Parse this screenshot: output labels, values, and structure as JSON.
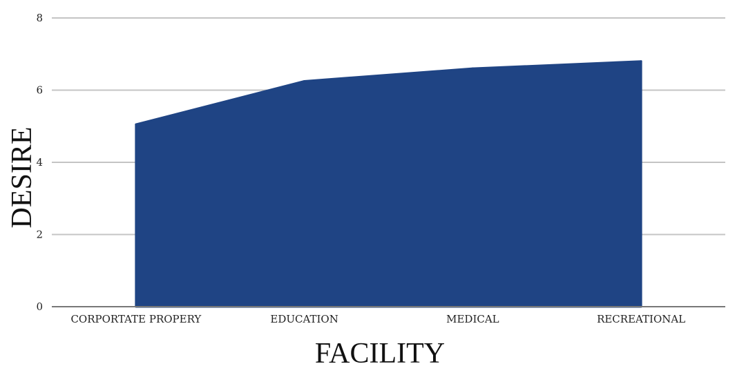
{
  "chart_data": {
    "type": "area",
    "categories": [
      "CORPORTATE PROPERY",
      "EDUCATION",
      "MEDICAL",
      "RECREATIONAL"
    ],
    "series": [
      {
        "values": [
          5.05,
          6.25,
          6.6,
          6.8
        ]
      }
    ],
    "xlabel": "FACILITY",
    "ylabel": "DESIRE",
    "ylim": [
      0,
      8
    ],
    "yticks": [
      0,
      2,
      4,
      6,
      8
    ],
    "grid": true,
    "legend": "none",
    "colors": {
      "area": "#1f4484",
      "grid": "#c4c4c4",
      "axis": "#777777"
    }
  }
}
